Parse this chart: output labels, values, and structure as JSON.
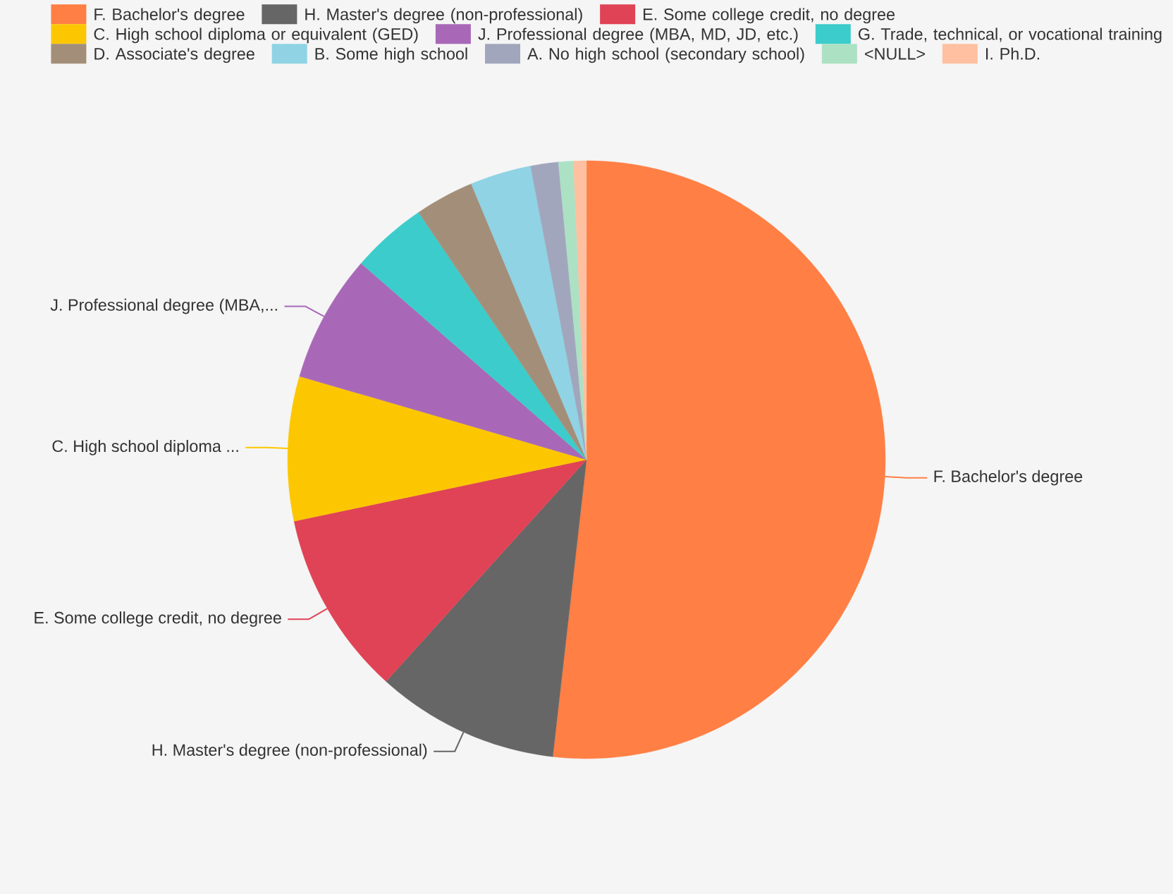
{
  "chart_data": {
    "type": "pie",
    "categories": [
      "F. Bachelor's degree",
      "H. Master's degree (non-professional)",
      "E. Some college credit, no degree",
      "C. High school diploma or equivalent (GED)",
      "J. Professional degree (MBA, MD, JD, etc.)",
      "G. Trade, technical, or vocational training",
      "D. Associate's degree",
      "B. Some high school",
      "A. No high school (secondary school)",
      "<NULL>",
      "I. Ph.D."
    ],
    "values": [
      51.8,
      9.9,
      10.0,
      7.8,
      6.9,
      4.1,
      3.2,
      3.3,
      1.5,
      0.8,
      0.7
    ],
    "colors": [
      "#ff7f44",
      "#666666",
      "#e04355",
      "#fcc700",
      "#a868b7",
      "#3ccccb",
      "#a38f79",
      "#8fd3e4",
      "#a1a6bd",
      "#ace1c4",
      "#fec0a1"
    ],
    "legend": "top",
    "annotations": [
      "F. Bachelor's degree",
      "H. Master's degree (non-professional)",
      "E. Some college credit, no degree",
      "C. High school diploma ...",
      "J. Professional degree (MBA,..."
    ]
  }
}
